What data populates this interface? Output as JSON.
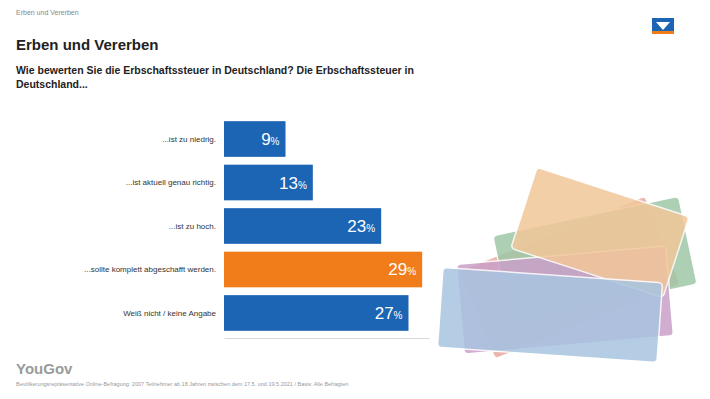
{
  "chart_data": {
    "type": "bar",
    "orientation": "horizontal",
    "title": "Erben und Vererben",
    "subtitle": "Wie bewerten Sie die Erbschaftssteuer in Deutschland? Die Erbschaftssteuer in Deutschland...",
    "annotations": [
      "Erben und Vererben",
      "YouGov",
      "Bevölkerungsrepräsentative Online-Befragung: 2007 Teilnehmer ab 18 Jahren zwischen dem 17.5. und 19.5.2021 / Basis: Alle Befragten"
    ],
    "categories": [
      "...ist zu niedrig.",
      "...ist aktuell genau richtig.",
      "...ist zu hoch.",
      "...sollte komplett abgeschafft werden.",
      "Weiß nicht / keine Angabe"
    ],
    "values": [
      9,
      13,
      23,
      29,
      27
    ],
    "value_labels": [
      "9%",
      "13%",
      "23%",
      "29%",
      "27%"
    ],
    "colors": [
      "#1c64b4",
      "#1c64b4",
      "#1c64b4",
      "#f07d1a",
      "#1c64b4"
    ],
    "xlim": [
      0,
      30
    ],
    "tick_labels": false,
    "data_labels": true
  }
}
